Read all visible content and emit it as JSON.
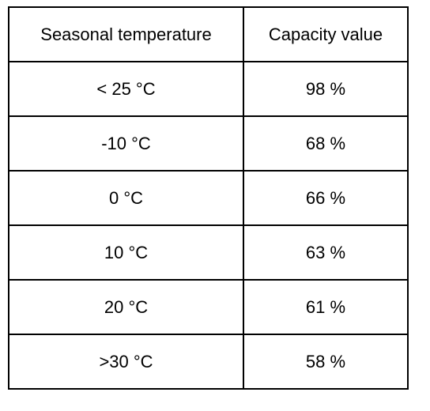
{
  "table": {
    "header": [
      "Seasonal temperature",
      "Capacity value"
    ],
    "rows": [
      [
        "< 25 °C",
        "98 %"
      ],
      [
        "-10 °C",
        "68 %"
      ],
      [
        "0 °C",
        "66 %"
      ],
      [
        "10 °C",
        "63 %"
      ],
      [
        "20 °C",
        "61 %"
      ],
      [
        ">30 °C",
        "58 %"
      ]
    ]
  }
}
